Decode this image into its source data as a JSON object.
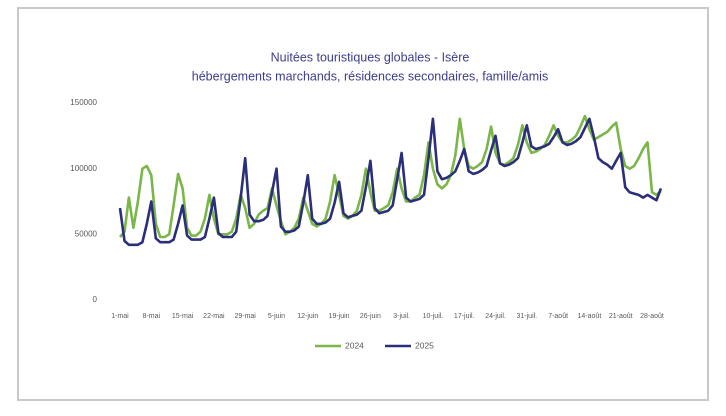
{
  "chart_data": {
    "type": "line",
    "title": "Nuitées touristiques globales - Isère",
    "subtitle": "hébergements marchands, résidences secondaires, famille/amis",
    "categories": [
      "1-mai",
      null,
      null,
      null,
      null,
      null,
      null,
      "8-mai",
      null,
      null,
      null,
      null,
      null,
      null,
      "15-mai",
      null,
      null,
      null,
      null,
      null,
      null,
      "22-mai",
      null,
      null,
      null,
      null,
      null,
      null,
      "29-mai",
      null,
      null,
      null,
      null,
      null,
      null,
      "5-juin",
      null,
      null,
      null,
      null,
      null,
      null,
      "12-juin",
      null,
      null,
      null,
      null,
      null,
      null,
      "19-juin",
      null,
      null,
      null,
      null,
      null,
      null,
      "26-juin",
      null,
      null,
      null,
      null,
      null,
      null,
      "3-juil.",
      null,
      null,
      null,
      null,
      null,
      null,
      "10-juil.",
      null,
      null,
      null,
      null,
      null,
      null,
      "17-juil.",
      null,
      null,
      null,
      null,
      null,
      null,
      "24-juil.",
      null,
      null,
      null,
      null,
      null,
      null,
      "31-juil.",
      null,
      null,
      null,
      null,
      null,
      null,
      "7-août",
      null,
      null,
      null,
      null,
      null,
      null,
      "14-août",
      null,
      null,
      null,
      null,
      null,
      null,
      "21-août",
      null,
      null,
      null,
      null,
      null,
      null,
      "28-août",
      null,
      null
    ],
    "series": [
      {
        "name": "2024",
        "color": "#7ab648",
        "values": [
          48000,
          52000,
          78000,
          55000,
          75000,
          100000,
          102000,
          95000,
          58000,
          48000,
          48000,
          50000,
          72000,
          96000,
          85000,
          55000,
          49000,
          49000,
          52000,
          62000,
          80000,
          62000,
          50000,
          50000,
          50000,
          52000,
          62000,
          80000,
          70000,
          55000,
          58000,
          65000,
          68000,
          70000,
          85000,
          72000,
          60000,
          50000,
          52000,
          55000,
          62000,
          78000,
          68000,
          58000,
          56000,
          58000,
          62000,
          75000,
          95000,
          80000,
          64000,
          62000,
          64000,
          68000,
          80000,
          100000,
          82000,
          68000,
          68000,
          70000,
          72000,
          82000,
          100000,
          85000,
          75000,
          75000,
          78000,
          80000,
          95000,
          120000,
          100000,
          88000,
          85000,
          88000,
          95000,
          110000,
          138000,
          115000,
          102000,
          100000,
          102000,
          105000,
          115000,
          132000,
          112000,
          104000,
          103000,
          105000,
          108000,
          118000,
          133000,
          120000,
          112000,
          113000,
          115000,
          118000,
          125000,
          133000,
          125000,
          120000,
          120000,
          122000,
          125000,
          132000,
          140000,
          130000,
          122000,
          124000,
          126000,
          128000,
          132000,
          135000,
          115000,
          102000,
          100000,
          102000,
          108000,
          115000,
          120000,
          82000,
          80000,
          83000
        ]
      },
      {
        "name": "2025",
        "color": "#2b2f7a",
        "values": [
          70000,
          45000,
          42000,
          42000,
          42000,
          44000,
          58000,
          75000,
          47000,
          44000,
          44000,
          44000,
          46000,
          58000,
          72000,
          49000,
          46000,
          46000,
          46000,
          48000,
          62000,
          78000,
          51000,
          48000,
          48000,
          48000,
          52000,
          78000,
          108000,
          65000,
          60000,
          60000,
          61000,
          64000,
          82000,
          100000,
          56000,
          52000,
          52000,
          53000,
          56000,
          74000,
          95000,
          62000,
          58000,
          58000,
          59000,
          62000,
          74000,
          90000,
          66000,
          63000,
          64000,
          65000,
          68000,
          86000,
          106000,
          70000,
          66000,
          67000,
          68000,
          72000,
          92000,
          112000,
          78000,
          75000,
          76000,
          77000,
          80000,
          108000,
          138000,
          98000,
          92000,
          93000,
          95000,
          98000,
          106000,
          115000,
          98000,
          96000,
          97000,
          99000,
          102000,
          114000,
          125000,
          104000,
          102000,
          103000,
          105000,
          108000,
          120000,
          133000,
          117000,
          115000,
          116000,
          117000,
          119000,
          124000,
          130000,
          120000,
          118000,
          119000,
          121000,
          124000,
          131000,
          138000,
          124000,
          108000,
          105000,
          103000,
          100000,
          106000,
          112000,
          86000,
          82000,
          81000,
          80000,
          78000,
          80000,
          78000,
          76000,
          85000
        ]
      }
    ],
    "ylim": [
      0,
      150000
    ],
    "yticks": [
      0,
      50000,
      100000,
      150000
    ],
    "grid": false,
    "legend": "bottom"
  }
}
